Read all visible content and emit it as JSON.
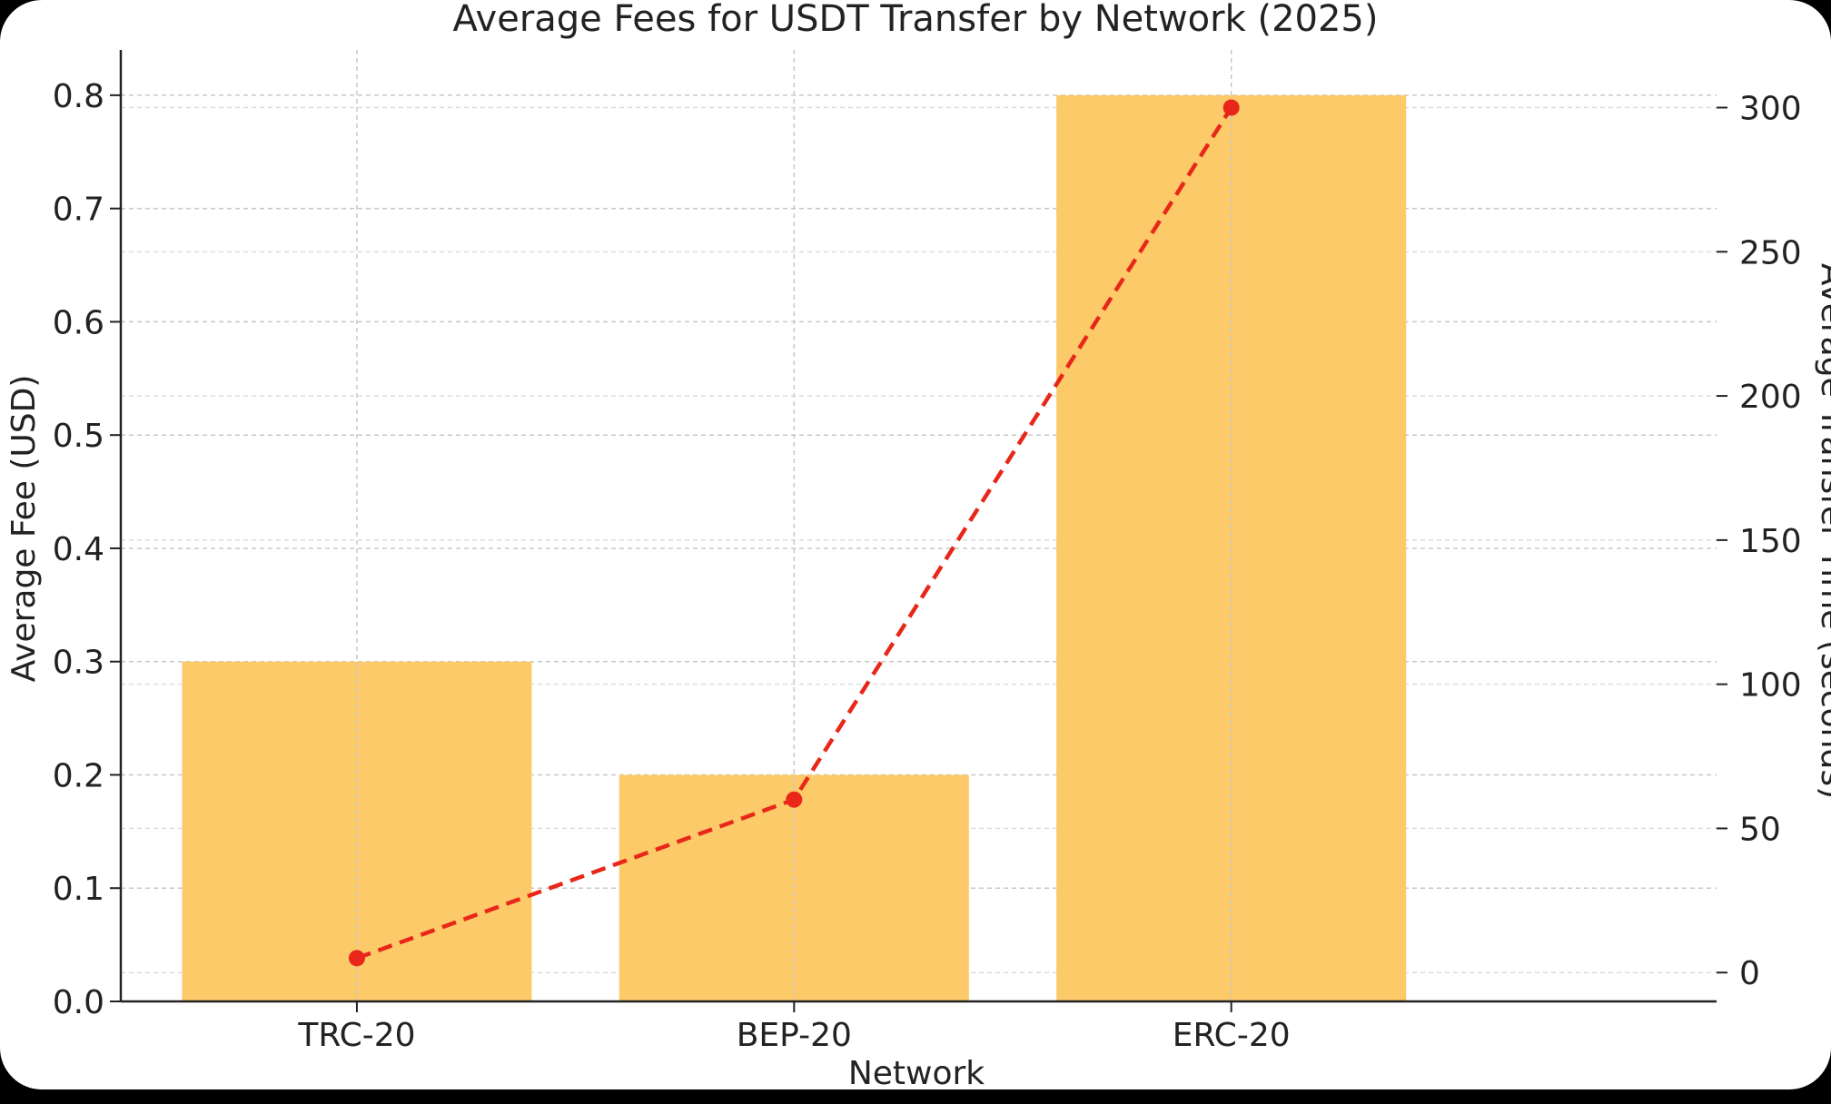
{
  "chart_data": {
    "type": "bar",
    "title": "Average Fees for USDT Transfer by Network (2025)",
    "xlabel": "Network",
    "ylabel": "Average Fee (USD)",
    "y2label": "Average Transfer Time (seconds)",
    "categories": [
      "TRC-20",
      "BEP-20",
      "ERC-20"
    ],
    "series": [
      {
        "name": "Average Fee (USD)",
        "kind": "bar",
        "axis": "left",
        "values": [
          0.3,
          0.2,
          0.8
        ],
        "color": "#fdca6a"
      },
      {
        "name": "Average Transfer Time (seconds)",
        "kind": "line",
        "axis": "right",
        "style": "dashed",
        "values": [
          5,
          60,
          300
        ],
        "color": "#e8271a"
      }
    ],
    "ylim": [
      0,
      0.84
    ],
    "yticks": [
      "0.0",
      "0.1",
      "0.2",
      "0.3",
      "0.4",
      "0.5",
      "0.6",
      "0.7",
      "0.8"
    ],
    "y2lim": [
      -10,
      320
    ],
    "y2ticks": [
      "0",
      "50",
      "100",
      "150",
      "200",
      "250",
      "300"
    ],
    "grid": true,
    "legend": "none"
  }
}
